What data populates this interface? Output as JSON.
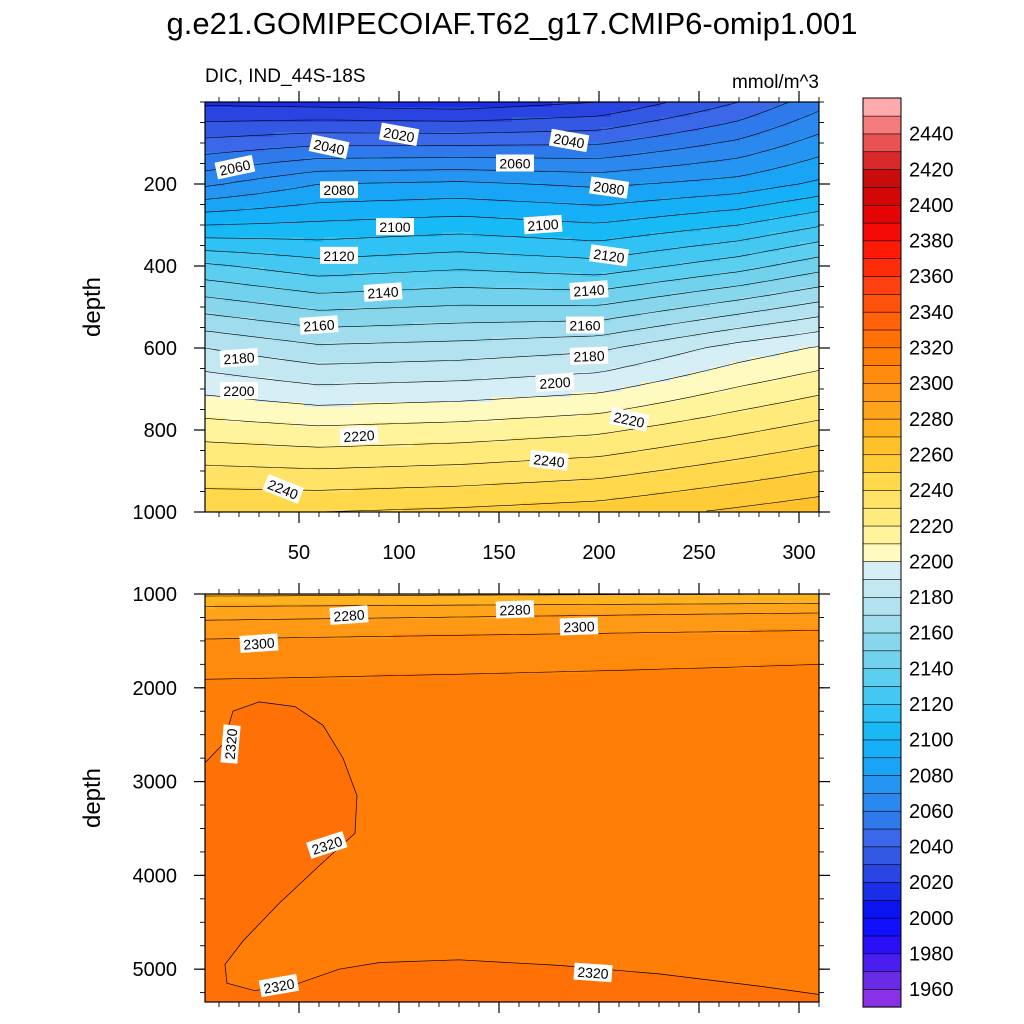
{
  "title": "g.e21.GOMIPECOIAF.T62_g17.CMIP6-omip1.001",
  "panel_left_label": "DIC, IND_44S-18S",
  "panel_right_label": "mmol/m^3",
  "colors": {
    "axis": "#000000",
    "contour_line": "#000000",
    "label_bg": "#ffffff"
  },
  "chart_data": [
    {
      "type": "heatmap",
      "name": "upper-panel",
      "ylabel": "depth",
      "xlabel": "",
      "xlim": [
        3,
        310
      ],
      "ylim": [
        1000,
        0
      ],
      "x_ticks": [
        50,
        100,
        150,
        200,
        250,
        300
      ],
      "y_ticks": [
        200,
        400,
        600,
        800,
        1000
      ],
      "field_points": [
        {
          "x": 3,
          "y": 0,
          "v": 2018
        },
        {
          "x": 60,
          "y": 0,
          "v": 2016
        },
        {
          "x": 130,
          "y": 0,
          "v": 2014
        },
        {
          "x": 200,
          "y": 0,
          "v": 2020
        },
        {
          "x": 270,
          "y": 0,
          "v": 2040
        },
        {
          "x": 310,
          "y": 0,
          "v": 2056
        },
        {
          "x": 3,
          "y": 200,
          "v": 2068
        },
        {
          "x": 60,
          "y": 200,
          "v": 2080
        },
        {
          "x": 130,
          "y": 200,
          "v": 2082
        },
        {
          "x": 200,
          "y": 200,
          "v": 2078
        },
        {
          "x": 270,
          "y": 200,
          "v": 2084
        },
        {
          "x": 310,
          "y": 200,
          "v": 2092
        },
        {
          "x": 3,
          "y": 400,
          "v": 2132
        },
        {
          "x": 60,
          "y": 400,
          "v": 2124
        },
        {
          "x": 130,
          "y": 400,
          "v": 2128
        },
        {
          "x": 200,
          "y": 400,
          "v": 2124
        },
        {
          "x": 270,
          "y": 400,
          "v": 2136
        },
        {
          "x": 310,
          "y": 400,
          "v": 2146
        },
        {
          "x": 3,
          "y": 600,
          "v": 2180
        },
        {
          "x": 60,
          "y": 600,
          "v": 2172
        },
        {
          "x": 130,
          "y": 600,
          "v": 2174
        },
        {
          "x": 200,
          "y": 600,
          "v": 2178
        },
        {
          "x": 270,
          "y": 600,
          "v": 2194
        },
        {
          "x": 310,
          "y": 600,
          "v": 2201
        },
        {
          "x": 3,
          "y": 800,
          "v": 2215
        },
        {
          "x": 60,
          "y": 800,
          "v": 2212
        },
        {
          "x": 130,
          "y": 800,
          "v": 2214
        },
        {
          "x": 200,
          "y": 800,
          "v": 2218
        },
        {
          "x": 270,
          "y": 800,
          "v": 2228
        },
        {
          "x": 310,
          "y": 800,
          "v": 2234
        },
        {
          "x": 3,
          "y": 1000,
          "v": 2250
        },
        {
          "x": 60,
          "y": 1000,
          "v": 2250
        },
        {
          "x": 130,
          "y": 1000,
          "v": 2252
        },
        {
          "x": 200,
          "y": 1000,
          "v": 2255
        },
        {
          "x": 270,
          "y": 1000,
          "v": 2262
        },
        {
          "x": 310,
          "y": 1000,
          "v": 2266
        }
      ],
      "contour_labels": [
        {
          "text": "2020",
          "x": 100,
          "y": 80,
          "angle": 10
        },
        {
          "text": "2040",
          "x": 65,
          "y": 110,
          "angle": 12
        },
        {
          "text": "2040",
          "x": 185,
          "y": 95,
          "angle": 10
        },
        {
          "text": "2060",
          "x": 18,
          "y": 160,
          "angle": -12
        },
        {
          "text": "2060",
          "x": 158,
          "y": 150,
          "angle": 0
        },
        {
          "text": "2080",
          "x": 70,
          "y": 215,
          "angle": 0
        },
        {
          "text": "2080",
          "x": 205,
          "y": 210,
          "angle": 8
        },
        {
          "text": "2100",
          "x": 98,
          "y": 305,
          "angle": 0
        },
        {
          "text": "2100",
          "x": 172,
          "y": 300,
          "angle": -4
        },
        {
          "text": "2120",
          "x": 70,
          "y": 375,
          "angle": 0
        },
        {
          "text": "2120",
          "x": 205,
          "y": 375,
          "angle": 8
        },
        {
          "text": "2140",
          "x": 92,
          "y": 465,
          "angle": -4
        },
        {
          "text": "2140",
          "x": 195,
          "y": 460,
          "angle": -4
        },
        {
          "text": "2160",
          "x": 60,
          "y": 545,
          "angle": -4
        },
        {
          "text": "2160",
          "x": 193,
          "y": 545,
          "angle": 0
        },
        {
          "text": "2180",
          "x": 20,
          "y": 625,
          "angle": -4
        },
        {
          "text": "2180",
          "x": 195,
          "y": 620,
          "angle": -2
        },
        {
          "text": "2200",
          "x": 20,
          "y": 705,
          "angle": 0
        },
        {
          "text": "2200",
          "x": 178,
          "y": 685,
          "angle": -4
        },
        {
          "text": "2220",
          "x": 80,
          "y": 815,
          "angle": -4
        },
        {
          "text": "2220",
          "x": 215,
          "y": 775,
          "angle": 12
        },
        {
          "text": "2240",
          "x": 175,
          "y": 875,
          "angle": 6
        },
        {
          "text": "2240",
          "x": 42,
          "y": 945,
          "angle": 22
        }
      ]
    },
    {
      "type": "heatmap",
      "name": "lower-panel",
      "ylabel": "depth",
      "xlabel": "",
      "xlim": [
        3,
        310
      ],
      "ylim": [
        5350,
        1000
      ],
      "x_ticks": [
        50,
        100,
        150,
        200,
        250,
        300
      ],
      "y_ticks": [
        1000,
        2000,
        3000,
        4000,
        5000
      ],
      "field_points": [
        {
          "x": 3,
          "y": 1000,
          "v": 2268
        },
        {
          "x": 310,
          "y": 1000,
          "v": 2270
        },
        {
          "x": 3,
          "y": 1200,
          "v": 2286
        },
        {
          "x": 310,
          "y": 1200,
          "v": 2290
        },
        {
          "x": 3,
          "y": 1500,
          "v": 2301
        },
        {
          "x": 310,
          "y": 1500,
          "v": 2306
        },
        {
          "x": 3,
          "y": 2000,
          "v": 2312
        },
        {
          "x": 310,
          "y": 2000,
          "v": 2314
        },
        {
          "x": 3,
          "y": 5350,
          "v": 2318
        },
        {
          "x": 310,
          "y": 5350,
          "v": 2319
        }
      ],
      "region_2320": {
        "value": 2320,
        "boundary_upper": [
          [
            3,
            2800
          ],
          [
            12,
            2600
          ],
          [
            17,
            2250
          ],
          [
            30,
            2150
          ],
          [
            48,
            2200
          ],
          [
            62,
            2400
          ],
          [
            72,
            2750
          ],
          [
            79,
            3150
          ],
          [
            78,
            3550
          ],
          [
            60,
            3900
          ],
          [
            40,
            4300
          ],
          [
            22,
            4700
          ],
          [
            13,
            4950
          ],
          [
            14,
            5150
          ],
          [
            28,
            5230
          ],
          [
            50,
            5150
          ],
          [
            70,
            5000
          ],
          [
            90,
            4930
          ],
          [
            130,
            4900
          ],
          [
            180,
            4960
          ],
          [
            230,
            5050
          ],
          [
            280,
            5180
          ],
          [
            310,
            5270
          ]
        ]
      },
      "contour_labels": [
        {
          "text": "2280",
          "x": 75,
          "y": 1230,
          "angle": -4
        },
        {
          "text": "2280",
          "x": 158,
          "y": 1170,
          "angle": -2
        },
        {
          "text": "2300",
          "x": 30,
          "y": 1530,
          "angle": -4
        },
        {
          "text": "2300",
          "x": 190,
          "y": 1350,
          "angle": -2
        },
        {
          "text": "2320",
          "x": 16,
          "y": 2600,
          "angle": -85
        },
        {
          "text": "2320",
          "x": 64,
          "y": 3680,
          "angle": -18
        },
        {
          "text": "2320",
          "x": 40,
          "y": 5180,
          "angle": -10
        },
        {
          "text": "2320",
          "x": 197,
          "y": 5040,
          "angle": 4
        }
      ]
    }
  ],
  "colorbar": {
    "type": "colorbar",
    "levels": [
      1950,
      1960,
      1970,
      1980,
      1990,
      2000,
      2010,
      2020,
      2030,
      2040,
      2050,
      2060,
      2070,
      2080,
      2090,
      2100,
      2110,
      2120,
      2130,
      2140,
      2150,
      2160,
      2170,
      2180,
      2190,
      2200,
      2210,
      2220,
      2230,
      2240,
      2250,
      2260,
      2270,
      2280,
      2290,
      2300,
      2310,
      2320,
      2330,
      2340,
      2350,
      2360,
      2370,
      2380,
      2390,
      2400,
      2410,
      2420,
      2430,
      2440,
      2450
    ],
    "colors": [
      "#8a30e6",
      "#6a2be6",
      "#4a1ef0",
      "#2a0ff8",
      "#1010ff",
      "#0a14f0",
      "#1a2ee8",
      "#2a44e2",
      "#3258e4",
      "#3a68e8",
      "#2f7aeb",
      "#2a88ef",
      "#2496f2",
      "#1aa4f6",
      "#16b0f8",
      "#18baf6",
      "#30c2f4",
      "#44c8f2",
      "#5ccef0",
      "#72d2ee",
      "#88d6ec",
      "#9edcee",
      "#b2e2f0",
      "#c4e8f2",
      "#d6eff6",
      "#fffbc0",
      "#fff39c",
      "#ffea7c",
      "#ffe266",
      "#ffd84c",
      "#ffcc38",
      "#ffc02a",
      "#ffb220",
      "#ffa41a",
      "#ff9814",
      "#ff8a0c",
      "#ff7e08",
      "#ff7006",
      "#ff6208",
      "#ff520c",
      "#ff4010",
      "#ff2c0c",
      "#ff1a08",
      "#f40a06",
      "#e40404",
      "#d40606",
      "#c80c0c",
      "#d82a2a",
      "#e85252",
      "#f47c7c",
      "#ffaaaa"
    ],
    "tick_labels": [
      "1960",
      "1980",
      "2000",
      "2020",
      "2040",
      "2060",
      "2080",
      "2100",
      "2120",
      "2140",
      "2160",
      "2180",
      "2200",
      "2220",
      "2240",
      "2260",
      "2280",
      "2300",
      "2320",
      "2340",
      "2360",
      "2380",
      "2400",
      "2420",
      "2440"
    ]
  }
}
